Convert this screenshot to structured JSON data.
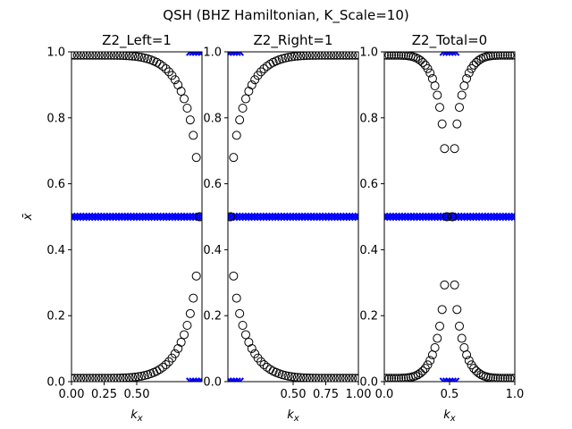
{
  "figure": {
    "suptitle": "QSH (BHZ Hamiltonian, K_Scale=10)",
    "colors": {
      "background": "#ffffff",
      "marker_edge": "#000000",
      "cross": "#0000ff"
    }
  },
  "chart_data": [
    {
      "type": "scatter",
      "title": "Z2_Left=1",
      "xlabel": "k_x",
      "ylabel": "x̄",
      "xlim": [
        0,
        1
      ],
      "ylim": [
        0,
        1
      ],
      "xticks": [
        "0.00",
        "0.25",
        "0.50"
      ],
      "xtick_values": [
        0,
        0.25,
        0.5
      ],
      "yticks": [
        "0.0",
        "0.2",
        "0.4",
        "0.6",
        "0.8",
        "1.0"
      ],
      "curve": "left",
      "series": [
        {
          "marker": "open-circle",
          "sample_points": [
            [
              0.0,
              0.99
            ],
            [
              0.25,
              0.975
            ],
            [
              0.5,
              0.93
            ],
            [
              0.7,
              0.8
            ],
            [
              0.8,
              0.6
            ],
            [
              0.82,
              0.5
            ],
            [
              0.8,
              0.4
            ],
            [
              0.7,
              0.2
            ],
            [
              0.5,
              0.07
            ],
            [
              0.25,
              0.025
            ],
            [
              0.0,
              0.01
            ]
          ]
        },
        {
          "marker": "x",
          "color": "#0000ff",
          "band_y": [
            0.0,
            0.5,
            1.0
          ]
        }
      ]
    },
    {
      "type": "scatter",
      "title": "Z2_Right=1",
      "xlabel": "k_x",
      "ylabel": "",
      "xlim": [
        0,
        1
      ],
      "ylim": [
        0,
        1
      ],
      "xticks": [
        "0.50",
        "0.75",
        "1.00"
      ],
      "xtick_values": [
        0.5,
        0.75,
        1.0
      ],
      "yticks": [
        "0.0",
        "0.2",
        "0.4",
        "0.6",
        "0.8",
        "1.0"
      ],
      "curve": "right",
      "series": [
        {
          "marker": "open-circle",
          "sample_points": [
            [
              0.0,
              0.5
            ],
            [
              0.05,
              0.6
            ],
            [
              0.15,
              0.8
            ],
            [
              0.4,
              0.93
            ],
            [
              0.75,
              0.975
            ],
            [
              1.0,
              0.99
            ],
            [
              0.15,
              0.2
            ],
            [
              0.4,
              0.07
            ],
            [
              0.75,
              0.025
            ],
            [
              1.0,
              0.01
            ]
          ]
        },
        {
          "marker": "x",
          "color": "#0000ff",
          "band_y": [
            0.0,
            0.5,
            1.0
          ]
        }
      ]
    },
    {
      "type": "scatter",
      "title": "Z2_Total=0",
      "xlabel": "k_x",
      "ylabel": "",
      "xlim": [
        0,
        1
      ],
      "ylim": [
        0,
        1
      ],
      "xticks": [
        "0.0",
        "0.5",
        "1.0"
      ],
      "xtick_values": [
        0,
        0.5,
        1.0
      ],
      "yticks": [
        "0.0",
        "0.2",
        "0.4",
        "0.6",
        "0.8",
        "1.0"
      ],
      "curve": "total",
      "series": [
        {
          "marker": "open-circle",
          "sample_points": [
            [
              0.0,
              0.99
            ],
            [
              0.3,
              0.93
            ],
            [
              0.45,
              0.6
            ],
            [
              0.48,
              0.5
            ],
            [
              0.45,
              0.4
            ],
            [
              0.3,
              0.07
            ],
            [
              0.0,
              0.01
            ],
            [
              1.0,
              0.99
            ],
            [
              0.7,
              0.93
            ],
            [
              0.55,
              0.6
            ],
            [
              0.52,
              0.5
            ],
            [
              0.55,
              0.4
            ],
            [
              0.7,
              0.07
            ],
            [
              1.0,
              0.01
            ]
          ]
        },
        {
          "marker": "x",
          "color": "#0000ff",
          "band_y": [
            0.0,
            0.5,
            1.0
          ]
        }
      ]
    }
  ]
}
